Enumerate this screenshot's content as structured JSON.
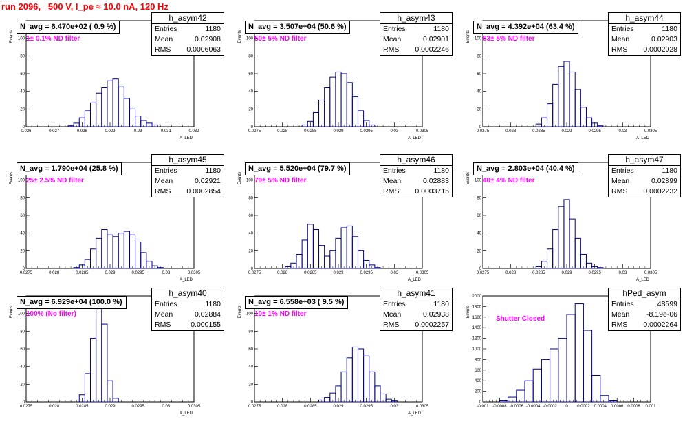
{
  "page_title": "run 2096,   500 V, I_pe ≈ 10.0 nA, 120 Hz",
  "colors": {
    "title": "#ff0000",
    "annotation": "#ff00ff",
    "histogram": "#000080"
  },
  "panels": [
    {
      "name": "h_asym42",
      "nbox": "N_avg = 6.470e+02 ( 0.9 %)",
      "annotation": "1± 0.1% ND filter",
      "stats": [
        [
          "Entries",
          "1180"
        ],
        [
          "Mean",
          "0.02908"
        ],
        [
          "RMS",
          "0.0006063"
        ]
      ]
    },
    {
      "name": "h_asym43",
      "nbox": "N_avg = 3.507e+04 (50.6 %)",
      "annotation": "50± 5% ND filter",
      "stats": [
        [
          "Entries",
          "1180"
        ],
        [
          "Mean",
          "0.02901"
        ],
        [
          "RMS",
          "0.0002246"
        ]
      ]
    },
    {
      "name": "h_asym44",
      "nbox": "N_avg = 4.392e+04 (63.4 %)",
      "annotation": "63± 5% ND filter",
      "stats": [
        [
          "Entries",
          "1180"
        ],
        [
          "Mean",
          "0.02903"
        ],
        [
          "RMS",
          "0.0002028"
        ]
      ]
    },
    {
      "name": "h_asym45",
      "nbox": "N_avg = 1.790e+04 (25.8 %)",
      "annotation": "25± 2.5% ND filter",
      "stats": [
        [
          "Entries",
          "1180"
        ],
        [
          "Mean",
          "0.02921"
        ],
        [
          "RMS",
          "0.0002854"
        ]
      ]
    },
    {
      "name": "h_asym46",
      "nbox": "N_avg = 5.520e+04 (79.7 %)",
      "annotation": "79± 5% ND filter",
      "stats": [
        [
          "Entries",
          "1180"
        ],
        [
          "Mean",
          "0.02883"
        ],
        [
          "RMS",
          "0.0003715"
        ]
      ]
    },
    {
      "name": "h_asym47",
      "nbox": "N_avg = 2.803e+04 (40.4 %)",
      "annotation": "40± 4% ND filter",
      "stats": [
        [
          "Entries",
          "1180"
        ],
        [
          "Mean",
          "0.02899"
        ],
        [
          "RMS",
          "0.0002232"
        ]
      ]
    },
    {
      "name": "h_asym40",
      "nbox": "N_avg = 6.929e+04 (100.0 %)",
      "annotation": "100% (No filter)",
      "stats": [
        [
          "Entries",
          "1180"
        ],
        [
          "Mean",
          "0.02884"
        ],
        [
          "RMS",
          "0.000155"
        ]
      ]
    },
    {
      "name": "h_asym41",
      "nbox": "N_avg = 6.558e+03 ( 9.5 %)",
      "annotation": "10± 1% ND filter",
      "stats": [
        [
          "Entries",
          "1180"
        ],
        [
          "Mean",
          "0.02938"
        ],
        [
          "RMS",
          "0.0002257"
        ]
      ]
    },
    {
      "name": "hPed_asym",
      "nbox": "",
      "annotation": "Shutter Closed",
      "stats": [
        [
          "Entries",
          "48599"
        ],
        [
          "Mean",
          "-8.19e-06"
        ],
        [
          "RMS",
          "0.0002264"
        ]
      ]
    }
  ],
  "chart_data": [
    {
      "type": "bar",
      "title": "h_asym42",
      "ylabel": "Events",
      "xlabel": "A_LED",
      "xlim": [
        0.026,
        0.032
      ],
      "ylim": [
        0,
        120
      ],
      "xticks": [
        "0.026",
        "0.027",
        "0.028",
        "0.029",
        "0.03",
        "0.031",
        "0.032"
      ],
      "yticks": [
        "0",
        "20",
        "40",
        "60",
        "80",
        "100"
      ],
      "x": [
        0.0276,
        0.0278,
        0.028,
        0.0282,
        0.0284,
        0.0286,
        0.0288,
        0.029,
        0.0292,
        0.0294,
        0.0296,
        0.0298,
        0.03,
        0.0302,
        0.0304,
        0.0306
      ],
      "values": [
        1,
        4,
        10,
        18,
        27,
        38,
        44,
        52,
        54,
        45,
        32,
        20,
        12,
        7,
        4,
        2
      ]
    },
    {
      "type": "bar",
      "title": "h_asym43",
      "ylabel": "Events",
      "xlabel": "A_LED",
      "xlim": [
        0.0275,
        0.0305
      ],
      "ylim": [
        0,
        120
      ],
      "xticks": [
        "0.0275",
        "0.028",
        "0.0285",
        "0.029",
        "0.0295",
        "0.03",
        "0.0305"
      ],
      "yticks": [
        "0",
        "20",
        "40",
        "60",
        "80",
        "100"
      ],
      "x": [
        0.0284,
        0.0285,
        0.0286,
        0.0287,
        0.0288,
        0.0289,
        0.029,
        0.0291,
        0.0292,
        0.0293,
        0.0294,
        0.0295,
        0.0296
      ],
      "values": [
        2,
        6,
        16,
        30,
        44,
        56,
        62,
        60,
        50,
        34,
        18,
        7,
        2
      ]
    },
    {
      "type": "bar",
      "title": "h_asym44",
      "ylabel": "Events",
      "xlabel": "A_LED",
      "xlim": [
        0.0275,
        0.0305
      ],
      "ylim": [
        0,
        120
      ],
      "xticks": [
        "0.0275",
        "0.028",
        "0.0285",
        "0.029",
        "0.0295",
        "0.03",
        "0.0305"
      ],
      "yticks": [
        "0",
        "20",
        "40",
        "60",
        "80",
        "100"
      ],
      "x": [
        0.0285,
        0.0286,
        0.0287,
        0.0288,
        0.0289,
        0.029,
        0.0291,
        0.0292,
        0.0293,
        0.0294,
        0.0295,
        0.0296
      ],
      "values": [
        3,
        10,
        26,
        48,
        68,
        74,
        62,
        42,
        22,
        10,
        4,
        1
      ]
    },
    {
      "type": "bar",
      "title": "h_asym45",
      "ylabel": "Events",
      "xlabel": "A_LED",
      "xlim": [
        0.0275,
        0.0305
      ],
      "ylim": [
        0,
        120
      ],
      "xticks": [
        "0.0275",
        "0.028",
        "0.0285",
        "0.029",
        "0.0295",
        "0.03",
        "0.0305"
      ],
      "yticks": [
        "0",
        "20",
        "40",
        "60",
        "80",
        "100"
      ],
      "x": [
        0.0284,
        0.0285,
        0.0286,
        0.0287,
        0.0288,
        0.0289,
        0.029,
        0.0291,
        0.0292,
        0.0293,
        0.0294,
        0.0295,
        0.0296,
        0.0297,
        0.0298,
        0.0299
      ],
      "values": [
        1,
        4,
        10,
        22,
        34,
        44,
        38,
        36,
        40,
        42,
        38,
        30,
        18,
        8,
        3,
        1
      ]
    },
    {
      "type": "bar",
      "title": "h_asym46",
      "ylabel": "Events",
      "xlabel": "A_LED",
      "xlim": [
        0.0275,
        0.0305
      ],
      "ylim": [
        0,
        120
      ],
      "xticks": [
        "0.0275",
        "0.028",
        "0.0285",
        "0.029",
        "0.0295",
        "0.03",
        "0.0305"
      ],
      "yticks": [
        "0",
        "20",
        "40",
        "60",
        "80",
        "100"
      ],
      "x": [
        0.0281,
        0.0282,
        0.0283,
        0.0284,
        0.0285,
        0.0286,
        0.0287,
        0.0288,
        0.0289,
        0.029,
        0.0291,
        0.0292,
        0.0293,
        0.0294,
        0.0295,
        0.0296,
        0.0297
      ],
      "values": [
        2,
        6,
        16,
        32,
        50,
        44,
        26,
        14,
        20,
        34,
        46,
        48,
        36,
        20,
        9,
        4,
        1
      ]
    },
    {
      "type": "bar",
      "title": "h_asym47",
      "ylabel": "Events",
      "xlabel": "A_LED",
      "xlim": [
        0.0275,
        0.0305
      ],
      "ylim": [
        0,
        120
      ],
      "xticks": [
        "0.0275",
        "0.028",
        "0.0285",
        "0.029",
        "0.0295",
        "0.03",
        "0.0305"
      ],
      "yticks": [
        "0",
        "20",
        "40",
        "60",
        "80",
        "100"
      ],
      "x": [
        0.0285,
        0.0286,
        0.0287,
        0.0288,
        0.0289,
        0.029,
        0.0291,
        0.0292,
        0.0293,
        0.0294,
        0.0295,
        0.0296
      ],
      "values": [
        2,
        8,
        22,
        44,
        70,
        78,
        56,
        34,
        16,
        6,
        2,
        1
      ]
    },
    {
      "type": "bar",
      "title": "h_asym40",
      "ylabel": "Events",
      "xlabel": "A_LED",
      "xlim": [
        0.0275,
        0.0305
      ],
      "ylim": [
        0,
        120
      ],
      "xticks": [
        "0.0275",
        "0.028",
        "0.0285",
        "0.029",
        "0.0295",
        "0.03",
        "0.0305"
      ],
      "yticks": [
        "0",
        "20",
        "40",
        "60",
        "80",
        "100"
      ],
      "x": [
        0.0285,
        0.0286,
        0.0287,
        0.0288,
        0.0289,
        0.029,
        0.0291
      ],
      "values": [
        8,
        32,
        72,
        112,
        88,
        24,
        4
      ]
    },
    {
      "type": "bar",
      "title": "h_asym41",
      "ylabel": "Events",
      "xlabel": "A_LED",
      "xlim": [
        0.0275,
        0.0305
      ],
      "ylim": [
        0,
        120
      ],
      "xticks": [
        "0.0275",
        "0.028",
        "0.0285",
        "0.029",
        "0.0295",
        "0.03",
        "0.0305"
      ],
      "yticks": [
        "0",
        "20",
        "40",
        "60",
        "80",
        "100"
      ],
      "x": [
        0.0287,
        0.0288,
        0.0289,
        0.029,
        0.0291,
        0.0292,
        0.0293,
        0.0294,
        0.0295,
        0.0296,
        0.0297,
        0.0298,
        0.0299,
        0.03
      ],
      "values": [
        2,
        5,
        10,
        18,
        34,
        50,
        62,
        60,
        52,
        34,
        18,
        9,
        3,
        1
      ]
    },
    {
      "type": "bar",
      "title": "hPed_asym",
      "ylabel": "Events",
      "xlabel": "",
      "xlim": [
        -0.001,
        0.001
      ],
      "ylim": [
        0,
        2000
      ],
      "xticks": [
        "-0.001",
        "-0.0008",
        "-0.0006",
        "-0.0004",
        "-0.0002",
        "0",
        "0.0002",
        "0.0004",
        "0.0006",
        "0.0008",
        "0.001"
      ],
      "yticks": [
        "0",
        "200",
        "400",
        "600",
        "800",
        "1000",
        "1200",
        "1400",
        "1600",
        "1800",
        "2000"
      ],
      "x": [
        -0.00075,
        -0.00065,
        -0.00055,
        -0.00045,
        -0.00035,
        -0.00025,
        -0.00015,
        -5e-05,
        5e-05,
        0.00015,
        0.00025,
        0.00035,
        0.00045,
        0.00055
      ],
      "values": [
        20,
        90,
        220,
        400,
        620,
        800,
        1000,
        1200,
        1650,
        1850,
        1350,
        500,
        120,
        20
      ]
    }
  ]
}
